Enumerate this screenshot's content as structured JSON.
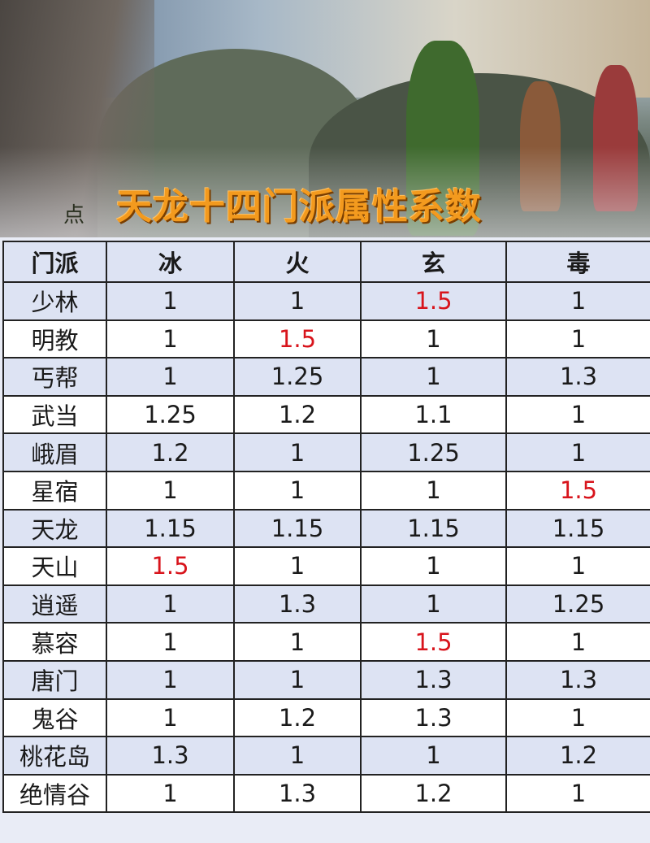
{
  "title": "天龙十四门派属性系数",
  "watermark": "点",
  "colors": {
    "title": "#f39a1e",
    "highlight": "#d8141c",
    "row_alt": "#dde3f3"
  },
  "table": {
    "headers": [
      "门派",
      "冰",
      "火",
      "玄",
      "毒"
    ],
    "rows": [
      {
        "sect": "少林",
        "values": [
          "1",
          "1",
          "1.5",
          "1"
        ]
      },
      {
        "sect": "明教",
        "values": [
          "1",
          "1.5",
          "1",
          "1"
        ]
      },
      {
        "sect": "丐帮",
        "values": [
          "1",
          "1.25",
          "1",
          "1.3"
        ]
      },
      {
        "sect": "武当",
        "values": [
          "1.25",
          "1.2",
          "1.1",
          "1"
        ]
      },
      {
        "sect": "峨眉",
        "values": [
          "1.2",
          "1",
          "1.25",
          "1"
        ]
      },
      {
        "sect": "星宿",
        "values": [
          "1",
          "1",
          "1",
          "1.5"
        ]
      },
      {
        "sect": "天龙",
        "values": [
          "1.15",
          "1.15",
          "1.15",
          "1.15"
        ]
      },
      {
        "sect": "天山",
        "values": [
          "1.5",
          "1",
          "1",
          "1"
        ]
      },
      {
        "sect": "逍遥",
        "values": [
          "1",
          "1.3",
          "1",
          "1.25"
        ]
      },
      {
        "sect": "慕容",
        "values": [
          "1",
          "1",
          "1.5",
          "1"
        ]
      },
      {
        "sect": "唐门",
        "values": [
          "1",
          "1",
          "1.3",
          "1.3"
        ]
      },
      {
        "sect": "鬼谷",
        "values": [
          "1",
          "1.2",
          "1.3",
          "1"
        ]
      },
      {
        "sect": "桃花岛",
        "values": [
          "1.3",
          "1",
          "1",
          "1.2"
        ]
      },
      {
        "sect": "绝情谷",
        "values": [
          "1",
          "1.3",
          "1.2",
          "1"
        ]
      }
    ]
  }
}
